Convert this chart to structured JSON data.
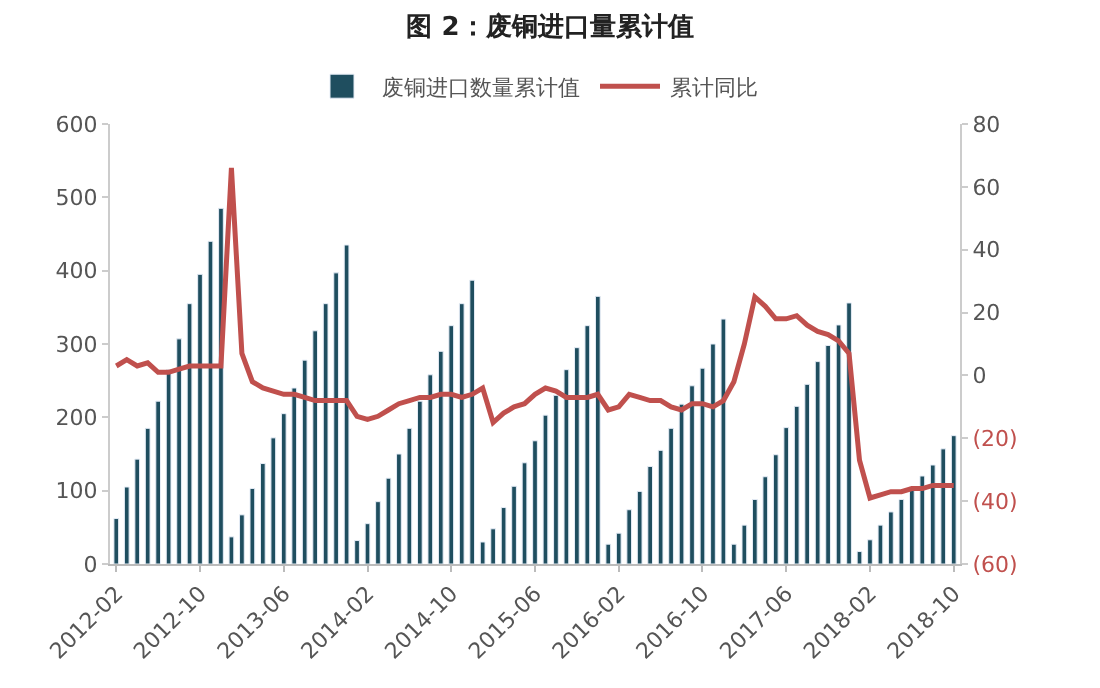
{
  "chart_data": {
    "type": "bar",
    "title": "图 2：废铜进口量累计值",
    "categories": [
      "2012-02",
      null,
      null,
      null,
      null,
      null,
      null,
      null,
      "2012-10",
      null,
      null,
      null,
      null,
      null,
      null,
      null,
      "2013-06",
      null,
      null,
      null,
      null,
      null,
      null,
      null,
      "2014-02",
      null,
      null,
      null,
      null,
      null,
      null,
      null,
      "2014-10",
      null,
      null,
      null,
      null,
      null,
      null,
      null,
      "2015-06",
      null,
      null,
      null,
      null,
      null,
      null,
      null,
      "2016-02",
      null,
      null,
      null,
      null,
      null,
      null,
      null,
      "2016-10",
      null,
      null,
      null,
      null,
      null,
      null,
      null,
      "2017-06",
      null,
      null,
      null,
      null,
      null,
      null,
      null,
      "2018-02",
      null,
      null,
      null,
      null,
      null,
      null,
      null,
      "2018-10"
    ],
    "series": [
      {
        "name": "废铜进口数量累计值",
        "color": "#1f4e5f",
        "values": [
          62,
          105,
          143,
          185,
          222,
          265,
          307,
          355,
          395,
          440,
          485,
          37,
          67,
          103,
          137,
          172,
          205,
          240,
          278,
          318,
          355,
          397,
          435,
          32,
          55,
          85,
          117,
          150,
          185,
          222,
          258,
          290,
          325,
          355,
          387,
          30,
          48,
          77,
          106,
          138,
          168,
          203,
          230,
          265,
          295,
          325,
          365,
          27,
          42,
          74,
          99,
          133,
          155,
          185,
          218,
          243,
          267,
          300,
          334,
          27,
          53,
          88,
          119,
          149,
          186,
          215,
          245,
          276,
          298,
          326,
          356,
          17,
          33,
          53,
          71,
          88,
          105,
          120,
          135,
          157,
          175
        ]
      },
      {
        "name": "累计同比",
        "type": "line",
        "axis": "y2",
        "color": "#c0504d",
        "marker": "none",
        "values": [
          3,
          5,
          3,
          4,
          1,
          1,
          2,
          3,
          3,
          3,
          3,
          66,
          7,
          -2,
          -4,
          -5,
          -6,
          -6,
          -7,
          -8,
          -8,
          -8,
          -8,
          -13,
          -14,
          -13,
          -11,
          -9,
          -8,
          -7,
          -7,
          -6,
          -6,
          -7,
          -6,
          -4,
          -15,
          -12,
          -10,
          -9,
          -6,
          -4,
          -5,
          -7,
          -7,
          -7,
          -6,
          -11,
          -10,
          -6,
          -7,
          -8,
          -8,
          -10,
          -11,
          -9,
          -9,
          -10,
          -8,
          -2,
          10,
          25,
          22,
          18,
          18,
          19,
          16,
          14,
          13,
          11,
          7,
          -27,
          -39,
          -38,
          -37,
          -37,
          -36,
          -36,
          -35,
          -35,
          -35
        ]
      }
    ],
    "ylim": [
      0,
      600
    ],
    "yticks": [
      0,
      100,
      200,
      300,
      400,
      500,
      600
    ],
    "y2lim": [
      -60,
      80
    ],
    "y2ticks": [
      {
        "value": -60,
        "label": "(60)"
      },
      {
        "value": -40,
        "label": "(40)"
      },
      {
        "value": -20,
        "label": "(20)"
      },
      0,
      20,
      40,
      60,
      80
    ],
    "legend": "top"
  }
}
